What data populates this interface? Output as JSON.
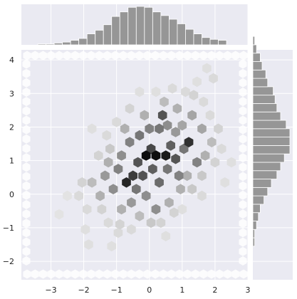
{
  "chart_data": {
    "type": "hexbin",
    "title": "",
    "xlabel": "",
    "ylabel": "",
    "xlim": [
      -3.9,
      3.0
    ],
    "ylim": [
      -2.55,
      4.3
    ],
    "x_ticks": [
      -3,
      -2,
      -1,
      0,
      1,
      2,
      3
    ],
    "y_ticks": [
      -2,
      -1,
      0,
      1,
      2,
      3,
      4
    ],
    "grid": true,
    "gridsize": 30,
    "colors": {
      "background": "#eaeaf2",
      "grid": "#ffffff",
      "hex_max": "#0e0e0e",
      "histogram_bar": "#969696",
      "histogram_edge": "#ffffff"
    },
    "x_marginal_histogram": {
      "bin_start": -3.4,
      "bin_width": 0.25,
      "counts": [
        1,
        1,
        2,
        3,
        5,
        7,
        12,
        16,
        22,
        31,
        36,
        41,
        42,
        41,
        36,
        32,
        28,
        23,
        17,
        12,
        8,
        6,
        5
      ]
    },
    "y_marginal_histogram": {
      "bin_start": -2.55,
      "bin_width": 0.25,
      "counts": [
        0,
        0,
        0,
        0,
        1,
        1,
        2,
        3,
        4,
        6,
        8,
        10,
        13,
        15,
        17,
        20,
        20,
        20,
        18,
        15,
        13,
        12,
        11,
        8,
        7,
        5,
        4,
        2,
        1
      ]
    },
    "hex_cells": [
      {
        "x": -0.1,
        "y": 1.15,
        "density": 1.0
      },
      {
        "x": 0.2,
        "y": 1.15,
        "density": 1.0
      },
      {
        "x": 0.5,
        "y": 1.15,
        "density": 0.95
      },
      {
        "x": 0.05,
        "y": 1.35,
        "density": 0.75
      },
      {
        "x": -0.35,
        "y": 0.95,
        "density": 0.7
      },
      {
        "x": 0.8,
        "y": 1.05,
        "density": 0.7
      },
      {
        "x": 0.65,
        "y": 1.45,
        "density": 0.65
      },
      {
        "x": -0.7,
        "y": 0.35,
        "density": 0.9
      },
      {
        "x": -0.5,
        "y": 0.55,
        "density": 0.8
      },
      {
        "x": -0.2,
        "y": 0.55,
        "density": 0.7
      },
      {
        "x": 0.1,
        "y": 0.75,
        "density": 0.65
      },
      {
        "x": 0.3,
        "y": 0.35,
        "density": 0.6
      },
      {
        "x": 1.2,
        "y": 1.55,
        "density": 0.85
      },
      {
        "x": 1.05,
        "y": 1.35,
        "density": 0.55
      },
      {
        "x": 0.4,
        "y": 2.35,
        "density": 0.7
      },
      {
        "x": -0.6,
        "y": 1.55,
        "density": 0.5
      },
      {
        "x": -0.3,
        "y": 1.75,
        "density": 0.55
      },
      {
        "x": 0.0,
        "y": 1.95,
        "density": 0.5
      },
      {
        "x": 0.3,
        "y": 1.95,
        "density": 0.55
      },
      {
        "x": 0.9,
        "y": 0.55,
        "density": 0.5
      },
      {
        "x": 1.45,
        "y": 0.95,
        "density": 0.5
      },
      {
        "x": -0.85,
        "y": 1.15,
        "density": 0.45
      },
      {
        "x": -0.95,
        "y": 0.75,
        "density": 0.5
      },
      {
        "x": -1.1,
        "y": 0.15,
        "density": 0.45
      },
      {
        "x": -0.4,
        "y": 0.15,
        "density": 0.55
      },
      {
        "x": -0.1,
        "y": -0.05,
        "density": 0.45
      },
      {
        "x": 0.2,
        "y": -0.45,
        "density": 0.45
      },
      {
        "x": -0.55,
        "y": -0.25,
        "density": 0.4
      },
      {
        "x": 0.55,
        "y": 0.75,
        "density": 0.55
      },
      {
        "x": 1.3,
        "y": 2.35,
        "density": 0.35
      },
      {
        "x": 0.85,
        "y": 2.55,
        "density": 0.3
      },
      {
        "x": 1.6,
        "y": 1.95,
        "density": 0.35
      },
      {
        "x": -1.35,
        "y": 0.55,
        "density": 0.4
      },
      {
        "x": -1.25,
        "y": 0.95,
        "density": 0.3
      },
      {
        "x": -0.15,
        "y": 2.35,
        "density": 0.3
      },
      {
        "x": 0.45,
        "y": 2.75,
        "density": 0.25
      },
      {
        "x": -0.75,
        "y": 1.95,
        "density": 0.3
      },
      {
        "x": 1.7,
        "y": 1.15,
        "density": 0.3
      },
      {
        "x": 1.9,
        "y": 1.55,
        "density": 0.25
      },
      {
        "x": -1.5,
        "y": -0.05,
        "density": 0.3
      },
      {
        "x": -1.75,
        "y": 0.35,
        "density": 0.25
      },
      {
        "x": -0.85,
        "y": -0.45,
        "density": 0.3
      },
      {
        "x": -0.3,
        "y": -0.65,
        "density": 0.25
      },
      {
        "x": 0.05,
        "y": -0.85,
        "density": 0.2
      },
      {
        "x": 0.6,
        "y": -0.25,
        "density": 0.3
      },
      {
        "x": 0.95,
        "y": 0.15,
        "density": 0.3
      },
      {
        "x": 1.15,
        "y": 0.55,
        "density": 0.3
      },
      {
        "x": 0.8,
        "y": 1.85,
        "density": 0.4
      },
      {
        "x": 0.55,
        "y": 2.05,
        "density": 0.45
      },
      {
        "x": 1.0,
        "y": 2.05,
        "density": 0.35
      },
      {
        "x": -1.2,
        "y": 1.35,
        "density": 0.2
      },
      {
        "x": -1.55,
        "y": 1.15,
        "density": 0.15
      },
      {
        "x": -2.05,
        "y": 0.35,
        "density": 0.15
      },
      {
        "x": -2.15,
        "y": -0.05,
        "density": 0.12
      },
      {
        "x": -1.9,
        "y": -0.45,
        "density": 0.12
      },
      {
        "x": -1.45,
        "y": -0.45,
        "density": 0.15
      },
      {
        "x": -1.25,
        "y": -0.85,
        "density": 0.12
      },
      {
        "x": -0.9,
        "y": -0.9,
        "density": 0.15
      },
      {
        "x": -0.55,
        "y": -1.05,
        "density": 0.12
      },
      {
        "x": 0.35,
        "y": -0.85,
        "density": 0.15
      },
      {
        "x": 0.75,
        "y": -0.55,
        "density": 0.15
      },
      {
        "x": 1.3,
        "y": 0.15,
        "density": 0.2
      },
      {
        "x": 1.6,
        "y": 0.55,
        "density": 0.2
      },
      {
        "x": 2.0,
        "y": 0.95,
        "density": 0.15
      },
      {
        "x": 2.2,
        "y": 1.35,
        "density": 0.12
      },
      {
        "x": 2.1,
        "y": 1.95,
        "density": 0.15
      },
      {
        "x": 1.85,
        "y": 2.35,
        "density": 0.12
      },
      {
        "x": 1.65,
        "y": 2.75,
        "density": 0.12
      },
      {
        "x": 1.35,
        "y": 2.95,
        "density": 0.15
      },
      {
        "x": 1.1,
        "y": 3.05,
        "density": 0.12
      },
      {
        "x": 0.7,
        "y": 3.15,
        "density": 0.12
      },
      {
        "x": 0.2,
        "y": 3.05,
        "density": 0.1
      },
      {
        "x": -0.3,
        "y": 3.05,
        "density": 0.1
      },
      {
        "x": -0.6,
        "y": 2.55,
        "density": 0.15
      },
      {
        "x": -1.0,
        "y": 2.15,
        "density": 0.12
      },
      {
        "x": -1.3,
        "y": 1.75,
        "density": 0.12
      },
      {
        "x": 1.95,
        "y": 3.45,
        "density": 0.12
      },
      {
        "x": 1.75,
        "y": 3.75,
        "density": 0.1
      },
      {
        "x": 1.45,
        "y": 3.35,
        "density": 0.1
      },
      {
        "x": -1.75,
        "y": 1.95,
        "density": 0.1
      },
      {
        "x": -2.5,
        "y": -0.05,
        "density": 0.08
      },
      {
        "x": -2.75,
        "y": -0.6,
        "density": 0.08
      },
      {
        "x": -1.95,
        "y": -1.05,
        "density": 0.1
      },
      {
        "x": -1.85,
        "y": -1.5,
        "density": 0.1
      },
      {
        "x": -1.15,
        "y": -1.55,
        "density": 0.1
      },
      {
        "x": -0.95,
        "y": -1.15,
        "density": 0.12
      },
      {
        "x": 0.5,
        "y": -1.25,
        "density": 0.1
      },
      {
        "x": 1.0,
        "y": -0.45,
        "density": 0.1
      },
      {
        "x": 1.6,
        "y": -0.05,
        "density": 0.12
      },
      {
        "x": 2.3,
        "y": 0.35,
        "density": 0.1
      },
      {
        "x": 2.5,
        "y": 0.95,
        "density": 0.1
      }
    ]
  }
}
